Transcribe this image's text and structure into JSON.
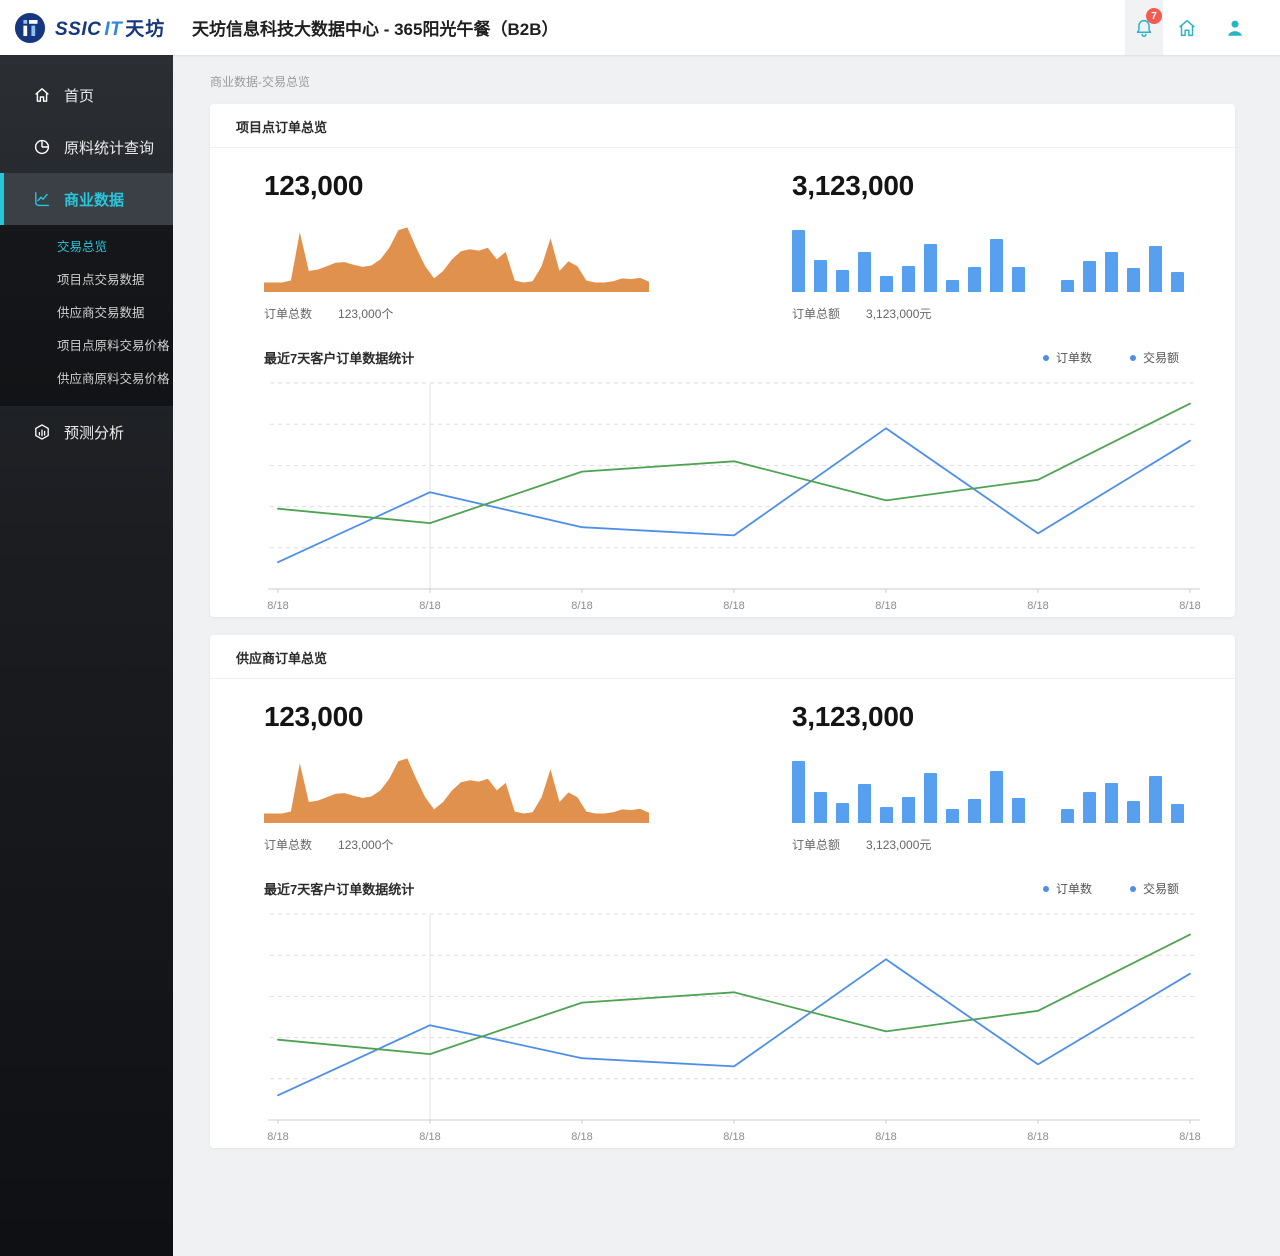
{
  "brand": {
    "part1": "SSIC",
    "part2": "IT",
    "part3": "天坊"
  },
  "header": {
    "title": "天坊信息科技大数据中心 - 365阳光午餐（B2B）",
    "notification_count": "7"
  },
  "breadcrumb": "商业数据-交易总览",
  "sidebar": {
    "items": [
      {
        "label": "首页",
        "icon": "home-icon",
        "active": false
      },
      {
        "label": "原料统计查询",
        "icon": "pie-chart-icon",
        "active": false
      },
      {
        "label": "商业数据",
        "icon": "line-chart-icon",
        "active": true
      },
      {
        "label": "预测分析",
        "icon": "cube-chart-icon",
        "active": false
      }
    ],
    "submenu": [
      {
        "label": "交易总览",
        "active": true
      },
      {
        "label": "项目点交易数据",
        "active": false
      },
      {
        "label": "供应商交易数据",
        "active": false
      },
      {
        "label": "项目点原料交易价格",
        "active": false
      },
      {
        "label": "供应商原料交易价格",
        "active": false
      }
    ]
  },
  "cards": [
    {
      "title": "项目点订单总览",
      "order_count": {
        "value": "123,000",
        "label": "订单总数",
        "unit_value": "123,000个"
      },
      "order_amount": {
        "value": "3,123,000",
        "label": "订单总额",
        "unit_value": "3,123,000元"
      },
      "trend_title": "最近7天客户订单数据统计",
      "legend": [
        {
          "label": "订单数"
        },
        {
          "label": "交易额"
        }
      ]
    },
    {
      "title": "供应商订单总览",
      "order_count": {
        "value": "123,000",
        "label": "订单总数",
        "unit_value": "123,000个"
      },
      "order_amount": {
        "value": "3,123,000",
        "label": "订单总额",
        "unit_value": "3,123,000元"
      },
      "trend_title": "最近7天客户订单数据统计",
      "legend": [
        {
          "label": "订单数"
        },
        {
          "label": "交易额"
        }
      ]
    }
  ],
  "colors": {
    "accent_teal": "#29C5DA",
    "header_icon_teal": "#27B5C4",
    "badge_red": "#F25B52",
    "spark_orange": "#E0914E",
    "bar_blue": "#57A0EF",
    "line_blue": "#4D8FE8",
    "line_green": "#4FA254",
    "legend_dot": "#4D8FE8"
  },
  "chart_data": [
    {
      "type": "area",
      "card": "项目点订单总览",
      "label": "订单总数",
      "note": "sparkline, no axes visible; values are percent of mini-chart height",
      "color": "#E0914E",
      "values": [
        11,
        11,
        11,
        14,
        85,
        28,
        30,
        35,
        40,
        41,
        37,
        34,
        36,
        45,
        62,
        88,
        92,
        62,
        35,
        17,
        28,
        45,
        57,
        60,
        58,
        62,
        45,
        56,
        14,
        11,
        13,
        35,
        76,
        28,
        42,
        35,
        14,
        11,
        11,
        13,
        17,
        16,
        18,
        12
      ]
    },
    {
      "type": "bar",
      "card": "项目点订单总览",
      "label": "订单总额",
      "note": "mini bar chart, two groups, no axes visible; values are percent of max bar height",
      "color": "#57A0EF",
      "groups": [
        [
          100,
          52,
          35,
          65,
          25,
          42,
          77,
          20,
          40,
          86,
          40
        ],
        [
          20,
          50,
          65,
          38,
          74,
          32
        ]
      ]
    },
    {
      "type": "line",
      "card": "项目点订单总览",
      "title": "最近7天客户订单数据统计",
      "categories": [
        "8/18",
        "8/18",
        "8/18",
        "8/18",
        "8/18",
        "8/18",
        "8/18"
      ],
      "ylim": [
        0,
        100
      ],
      "grid": "dashed",
      "legend_position": "top-right",
      "note": "no y-axis labels visible; values are percent of plot height",
      "series": [
        {
          "name": "订单数",
          "color": "#4D8FE8",
          "values": [
            13,
            47,
            30,
            26,
            78,
            27,
            72
          ]
        },
        {
          "name": "交易额",
          "color": "#4FA254",
          "values": [
            39,
            32,
            57,
            62,
            43,
            53,
            90
          ]
        }
      ]
    },
    {
      "type": "area",
      "card": "供应商订单总览",
      "label": "订单总数",
      "note": "sparkline, no axes visible; values are percent of mini-chart height",
      "color": "#E0914E",
      "values": [
        11,
        11,
        11,
        14,
        85,
        28,
        30,
        35,
        40,
        41,
        37,
        34,
        36,
        45,
        62,
        88,
        92,
        62,
        35,
        17,
        28,
        45,
        57,
        60,
        58,
        62,
        45,
        56,
        14,
        11,
        13,
        35,
        76,
        28,
        42,
        35,
        14,
        11,
        11,
        13,
        17,
        16,
        18,
        12
      ]
    },
    {
      "type": "bar",
      "card": "供应商订单总览",
      "label": "订单总额",
      "note": "mini bar chart, two groups, no axes visible; values are percent of max bar height",
      "color": "#57A0EF",
      "groups": [
        [
          100,
          50,
          33,
          63,
          25,
          42,
          80,
          22,
          38,
          84,
          40
        ],
        [
          22,
          50,
          64,
          35,
          76,
          30
        ]
      ]
    },
    {
      "type": "line",
      "card": "供应商订单总览",
      "title": "最近7天客户订单数据统计",
      "categories": [
        "8/18",
        "8/18",
        "8/18",
        "8/18",
        "8/18",
        "8/18",
        "8/18"
      ],
      "ylim": [
        0,
        100
      ],
      "grid": "dashed",
      "legend_position": "top-right",
      "note": "no y-axis labels visible; values are percent of plot height",
      "series": [
        {
          "name": "订单数",
          "color": "#4D8FE8",
          "values": [
            12,
            46,
            30,
            26,
            78,
            27,
            71
          ]
        },
        {
          "name": "交易额",
          "color": "#4FA254",
          "values": [
            39,
            32,
            57,
            62,
            43,
            53,
            90
          ]
        }
      ]
    }
  ]
}
